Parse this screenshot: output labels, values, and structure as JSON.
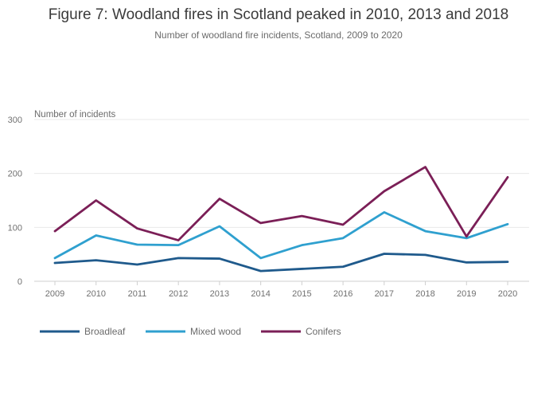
{
  "chart_data": {
    "type": "line",
    "title": "Figure 7: Woodland fires in Scotland peaked in 2010, 2013 and 2018",
    "subtitle": "Number of woodland fire incidents, Scotland, 2009 to 2020",
    "xlabel": "",
    "ylabel": "Number of incidents",
    "x": [
      "2009",
      "2010",
      "2011",
      "2012",
      "2013",
      "2014",
      "2015",
      "2016",
      "2017",
      "2018",
      "2019",
      "2020"
    ],
    "ylim": [
      0,
      300
    ],
    "yticks": [
      0,
      100,
      200,
      300
    ],
    "grid": true,
    "legend_position": "bottom-left",
    "series": [
      {
        "name": "Broadleaf",
        "color": "#1f5a8c",
        "values": [
          34,
          39,
          31,
          43,
          42,
          19,
          23,
          27,
          51,
          49,
          35,
          36
        ]
      },
      {
        "name": "Mixed wood",
        "color": "#2fa0cf",
        "values": [
          43,
          85,
          68,
          67,
          102,
          43,
          67,
          80,
          128,
          93,
          80,
          106
        ]
      },
      {
        "name": "Conifers",
        "color": "#7b1f57",
        "values": [
          93,
          150,
          98,
          76,
          153,
          108,
          121,
          105,
          167,
          212,
          83,
          193
        ]
      }
    ]
  }
}
